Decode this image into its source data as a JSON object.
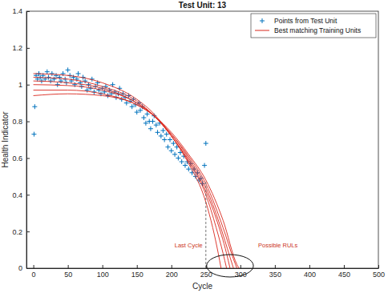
{
  "chart_data": {
    "type": "line",
    "title": "Test Unit: 13",
    "x_label": "Cycle",
    "y_label": "Health Indicator",
    "xlim": [
      -10,
      500
    ],
    "ylim": [
      0,
      1.4
    ],
    "xticks": [
      0,
      50,
      100,
      150,
      200,
      250,
      300,
      350,
      400,
      450,
      500
    ],
    "yticks": [
      0,
      0.2,
      0.4,
      0.6,
      0.8,
      1,
      1.2,
      1.4
    ],
    "grid": false,
    "legend": "upper right",
    "series": [
      {
        "name": "Points from Test Unit",
        "type": "scatter",
        "marker": "plus",
        "color": "#0072bd",
        "x": [
          1,
          2,
          4,
          6,
          8,
          10,
          12,
          14,
          17,
          20,
          22,
          25,
          27,
          30,
          33,
          35,
          38,
          40,
          43,
          46,
          48,
          50,
          53,
          55,
          58,
          60,
          63,
          65,
          68,
          70,
          72,
          75,
          78,
          80,
          83,
          85,
          88,
          90,
          93,
          95,
          98,
          100,
          103,
          105,
          108,
          110,
          113,
          115,
          118,
          120,
          123,
          125,
          128,
          130,
          133,
          135,
          138,
          140,
          143,
          145,
          148,
          150,
          153,
          155,
          158,
          160,
          163,
          165,
          168,
          170,
          173,
          175,
          178,
          180,
          183,
          185,
          188,
          190,
          193,
          195,
          198,
          200,
          203,
          205,
          208,
          210,
          213,
          215,
          218,
          220,
          223,
          225,
          228,
          230,
          233,
          235,
          238,
          240,
          243,
          245,
          248,
          250
        ],
        "values": [
          0.73,
          0.88,
          1.05,
          1.03,
          1.06,
          1.04,
          1.02,
          1.05,
          1.03,
          1.07,
          1.04,
          1.02,
          1.06,
          1.03,
          1.05,
          1.0,
          1.04,
          1.02,
          1.06,
          1.03,
          1.01,
          1.08,
          1.05,
          1.02,
          1.04,
          1.0,
          1.03,
          1.06,
          1.01,
          0.99,
          1.04,
          1.02,
          0.97,
          1.0,
          0.98,
          1.03,
          0.96,
          0.99,
          1.01,
          0.97,
          0.95,
          0.98,
          0.96,
          0.99,
          0.94,
          0.97,
          0.95,
          1.0,
          0.96,
          0.93,
          0.95,
          0.98,
          0.92,
          0.95,
          0.93,
          0.9,
          0.94,
          0.91,
          0.88,
          0.92,
          0.89,
          0.85,
          0.9,
          0.86,
          0.88,
          0.82,
          0.79,
          0.84,
          0.8,
          0.76,
          0.8,
          0.83,
          0.78,
          0.74,
          0.79,
          0.72,
          0.75,
          0.7,
          0.73,
          0.66,
          0.7,
          0.64,
          0.68,
          0.62,
          0.66,
          0.6,
          0.63,
          0.58,
          0.61,
          0.56,
          0.58,
          0.54,
          0.57,
          0.52,
          0.54,
          0.5,
          0.52,
          0.48,
          0.49,
          0.46,
          0.56,
          0.68
        ]
      },
      {
        "name": "Best matching Training Units",
        "type": "line",
        "line_style": "solid",
        "color": "#d9261c",
        "x": [
          0,
          50,
          100,
          150,
          175,
          200,
          225,
          250,
          260,
          268,
          272,
          null,
          0,
          50,
          100,
          150,
          175,
          200,
          225,
          250,
          265,
          275,
          280,
          null,
          0,
          50,
          100,
          150,
          175,
          200,
          225,
          250,
          265,
          280,
          285,
          null,
          0,
          50,
          100,
          150,
          175,
          200,
          225,
          250,
          270,
          285,
          290,
          null,
          0,
          50,
          100,
          150,
          175,
          200,
          225,
          250,
          275,
          290,
          295,
          null,
          0,
          50,
          100,
          150,
          175,
          200,
          225,
          250,
          275,
          295,
          298
        ],
        "values": [
          1.06,
          1.05,
          1.01,
          0.92,
          0.84,
          0.72,
          0.57,
          0.36,
          0.22,
          0.08,
          0,
          null,
          1.04,
          1.03,
          0.99,
          0.91,
          0.83,
          0.72,
          0.58,
          0.4,
          0.22,
          0.08,
          0,
          null,
          1.02,
          1.01,
          0.98,
          0.9,
          0.83,
          0.72,
          0.59,
          0.42,
          0.27,
          0.08,
          0,
          null,
          1.0,
          0.995,
          0.97,
          0.9,
          0.83,
          0.73,
          0.6,
          0.44,
          0.24,
          0.06,
          0,
          null,
          0.97,
          0.97,
          0.95,
          0.89,
          0.83,
          0.73,
          0.61,
          0.46,
          0.22,
          0.05,
          0,
          null,
          0.94,
          0.95,
          0.94,
          0.89,
          0.83,
          0.74,
          0.62,
          0.48,
          0.26,
          0.02,
          0
        ]
      }
    ],
    "annotations": [
      {
        "text": "Last Cycle",
        "x": 250,
        "y": 0.47
      },
      {
        "text": "Possible RULs"
      }
    ]
  }
}
